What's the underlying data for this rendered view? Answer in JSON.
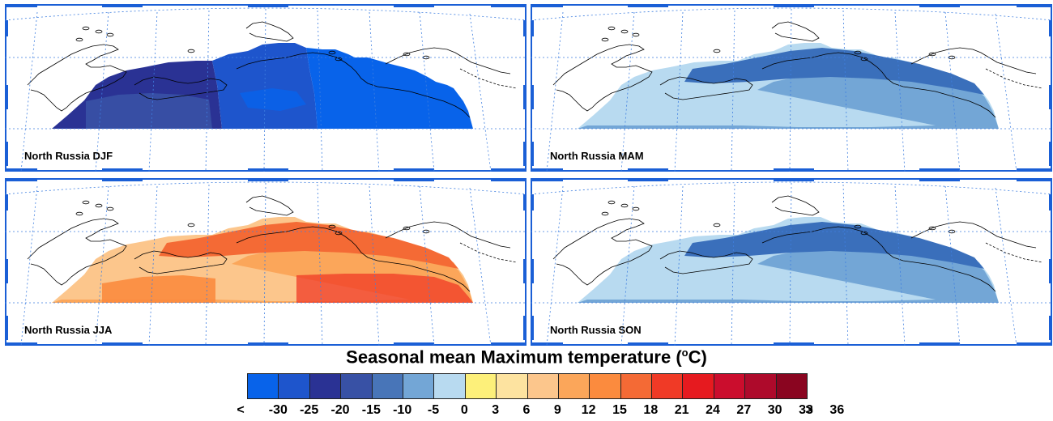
{
  "panels": [
    {
      "id": "djf",
      "label": "North Russia DJF",
      "zones": [
        {
          "color": "#2a3294",
          "value": -25
        },
        {
          "color": "#1e55cc",
          "value": -30
        },
        {
          "color": "#0863ea",
          "value": -35
        }
      ]
    },
    {
      "id": "mam",
      "label": "North Russia MAM",
      "zones": [
        {
          "color": "#b8daf0",
          "value": -5
        },
        {
          "color": "#73a6d6",
          "value": -10
        },
        {
          "color": "#3a6fbb",
          "value": -15
        }
      ]
    },
    {
      "id": "jja",
      "label": "North Russia JJA",
      "zones": [
        {
          "color": "#fcc68c",
          "value": 9
        },
        {
          "color": "#fba65a",
          "value": 12
        },
        {
          "color": "#f46a35",
          "value": 18
        }
      ]
    },
    {
      "id": "son",
      "label": "North Russia SON",
      "zones": [
        {
          "color": "#b8daf0",
          "value": -5
        },
        {
          "color": "#73a6d6",
          "value": -10
        },
        {
          "color": "#3a6fbb",
          "value": -15
        }
      ]
    }
  ],
  "colorbar": {
    "title": "Seasonal mean Maximum temperature (",
    "unit_sup": "o",
    "unit_suffix": "C)",
    "colors": [
      "#0863ea",
      "#1e55cc",
      "#2a3294",
      "#3851a5",
      "#4875b8",
      "#73a6d6",
      "#b8daf0",
      "#fdf07a",
      "#fde3a0",
      "#fcc68c",
      "#fba65a",
      "#fb8b3e",
      "#f46a35",
      "#f03a26",
      "#e61a1f",
      "#cb0d2d",
      "#ae0a2b",
      "#8a0520"
    ],
    "labels": [
      "<",
      "-30",
      "-25",
      "-20",
      "-15",
      "-10",
      "-5",
      "0",
      "3",
      "6",
      "9",
      "12",
      "15",
      "18",
      "21",
      "24",
      "27",
      "30",
      "33",
      "36",
      ">"
    ]
  }
}
